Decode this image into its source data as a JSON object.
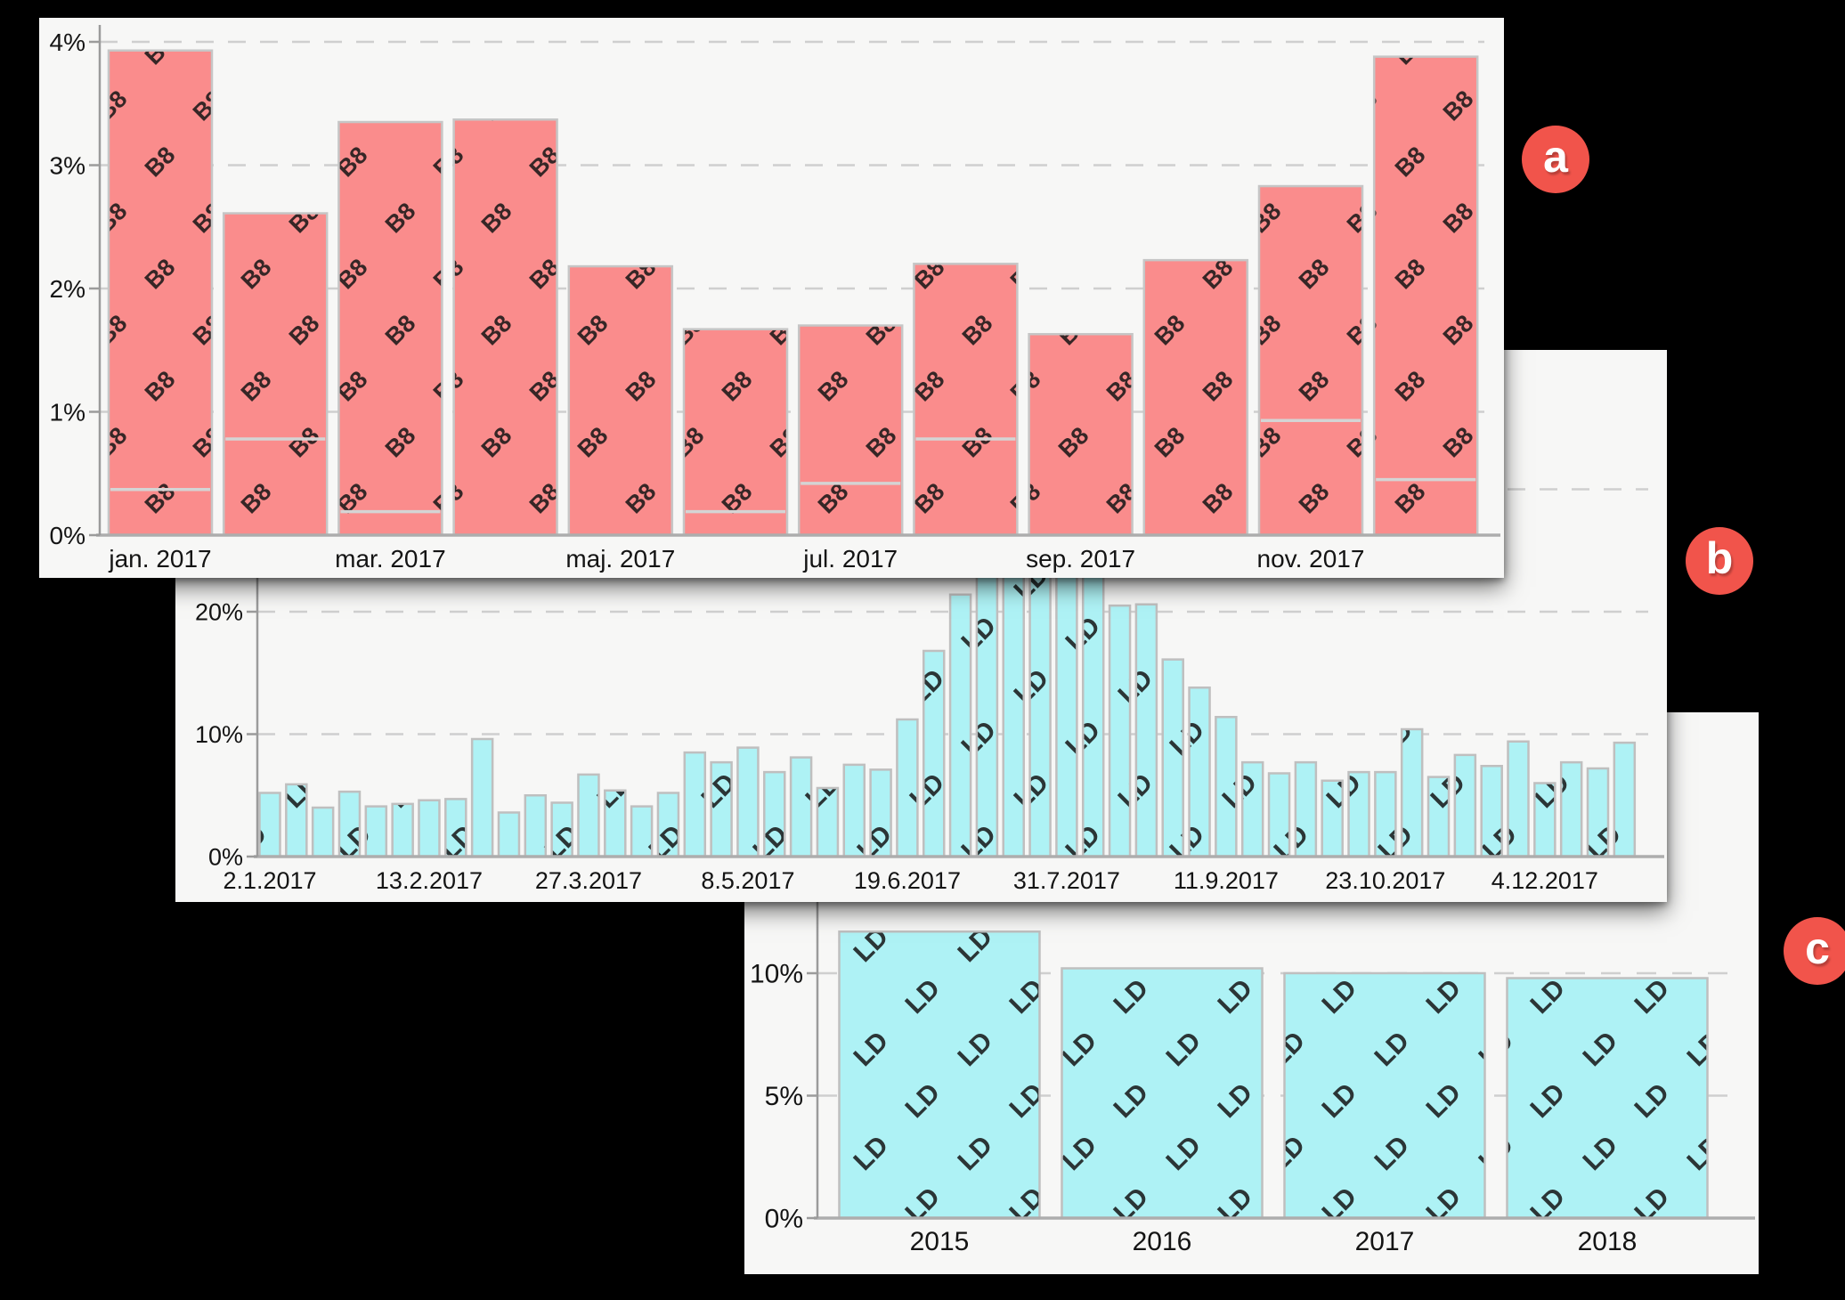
{
  "page": {
    "background": "#000000"
  },
  "colors": {
    "card_background": "#F7F7F6",
    "grid_line": "#CFCFCF",
    "axis_line": "#9B9B9B",
    "baseline": "#ADADAD",
    "tick_text": "#141414",
    "segment_line": "#D4D4D4",
    "badge_background": "#F1544B",
    "badge_text": "#FFFFFF",
    "bar_red_fill": "#FA8C8C",
    "bar_red_border": "#C6C6C6",
    "bar_red_watermark": "#7E3E46",
    "bar_cyan_fill": "#AEF2F5",
    "bar_cyan_border": "#BFBFBF",
    "bar_cyan_watermark": "#4F7B7E"
  },
  "badges": [
    {
      "label": "a"
    },
    {
      "label": "b"
    },
    {
      "label": "c"
    }
  ],
  "chart_data": [
    {
      "id": "a",
      "type": "bar",
      "title": "",
      "xlabel": "",
      "ylabel": "",
      "ylim": [
        0,
        4.14
      ],
      "grid": "dashed-horizontal",
      "legend": "none",
      "watermark": "B8",
      "bar_color": "#FA8C8C",
      "bar_border": "#C6C6C6",
      "watermark_color": "#7E3E46",
      "y_ticks": [
        {
          "value": 0,
          "label": "0%"
        },
        {
          "value": 1,
          "label": "1%"
        },
        {
          "value": 2,
          "label": "2%"
        },
        {
          "value": 3,
          "label": "3%"
        },
        {
          "value": 4,
          "label": "4%"
        }
      ],
      "x_ticks": [
        {
          "index": 0,
          "label": "jan. 2017"
        },
        {
          "index": 2,
          "label": "mar. 2017"
        },
        {
          "index": 4,
          "label": "maj. 2017"
        },
        {
          "index": 6,
          "label": "jul. 2017"
        },
        {
          "index": 8,
          "label": "sep. 2017"
        },
        {
          "index": 10,
          "label": "nov. 2017"
        }
      ],
      "values": [
        3.93,
        2.61,
        3.35,
        3.37,
        2.18,
        1.67,
        1.7,
        2.2,
        1.63,
        2.23,
        2.83,
        3.88
      ],
      "segment_lines": [
        0.37,
        0.78,
        0.19,
        null,
        null,
        0.19,
        0.42,
        0.78,
        null,
        null,
        0.93,
        0.45
      ]
    },
    {
      "id": "b",
      "type": "bar",
      "title": "",
      "xlabel": "",
      "ylabel": "",
      "ylim": [
        0,
        41
      ],
      "grid": "dashed-horizontal",
      "legend": "none",
      "watermark": "LD",
      "bar_color": "#AEF2F5",
      "bar_border": "#BFBFBF",
      "watermark_color": "#4F7B7E",
      "y_ticks": [
        {
          "value": 0,
          "label": "0%"
        },
        {
          "value": 10,
          "label": "10%"
        },
        {
          "value": 20,
          "label": "20%"
        },
        {
          "value": 30,
          "label": ""
        }
      ],
      "x_ticks": [
        {
          "index": 0,
          "label": "2.1.2017"
        },
        {
          "index": 6,
          "label": "13.2.2017"
        },
        {
          "index": 12,
          "label": "27.3.2017"
        },
        {
          "index": 18,
          "label": "8.5.2017"
        },
        {
          "index": 24,
          "label": "19.6.2017"
        },
        {
          "index": 30,
          "label": "31.7.2017"
        },
        {
          "index": 36,
          "label": "11.9.2017"
        },
        {
          "index": 42,
          "label": "23.10.2017"
        },
        {
          "index": 48,
          "label": "4.12.2017"
        }
      ],
      "values": [
        5.2,
        5.9,
        4.0,
        5.3,
        4.1,
        4.3,
        4.6,
        4.7,
        9.6,
        3.6,
        5.0,
        4.4,
        6.7,
        5.4,
        4.1,
        5.2,
        8.5,
        7.7,
        8.9,
        6.9,
        8.1,
        5.6,
        7.5,
        7.1,
        11.2,
        16.8,
        21.4,
        24.5,
        25.0,
        24.5,
        24.0,
        23.5,
        20.5,
        20.6,
        16.1,
        13.8,
        11.4,
        7.7,
        6.8,
        7.7,
        6.2,
        6.9,
        6.9,
        10.4,
        6.5,
        8.3,
        7.4,
        9.4,
        6.0,
        7.7,
        7.2,
        9.3
      ],
      "segment_lines": []
    },
    {
      "id": "c",
      "type": "bar",
      "title": "",
      "xlabel": "",
      "ylabel": "",
      "ylim": [
        0,
        12.2
      ],
      "grid": "dashed-horizontal",
      "legend": "none",
      "watermark": "LD",
      "bar_color": "#AEF2F5",
      "bar_border": "#BFBFBF",
      "watermark_color": "#4F7B7E",
      "y_ticks": [
        {
          "value": 0,
          "label": "0%"
        },
        {
          "value": 5,
          "label": "5%"
        },
        {
          "value": 10,
          "label": "10%"
        }
      ],
      "x_ticks": [
        {
          "index": 0,
          "label": "2015"
        },
        {
          "index": 1,
          "label": "2016"
        },
        {
          "index": 2,
          "label": "2017"
        },
        {
          "index": 3,
          "label": "2018"
        }
      ],
      "values": [
        11.7,
        10.2,
        10.0,
        9.8
      ],
      "segment_lines": []
    }
  ]
}
